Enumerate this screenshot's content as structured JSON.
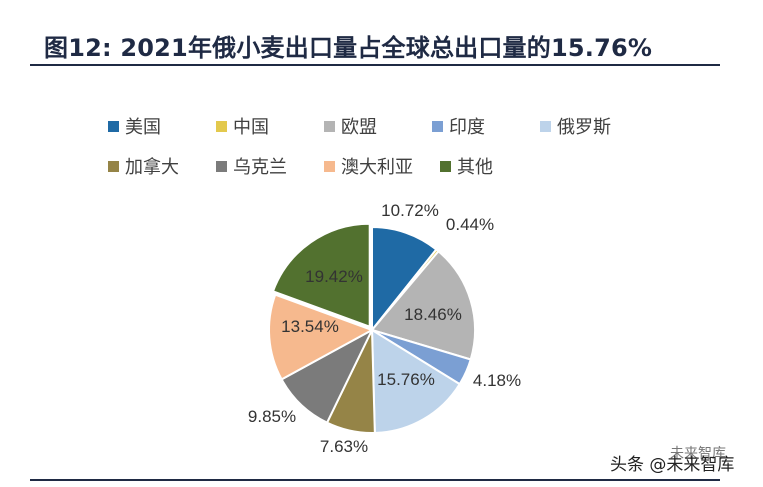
{
  "title": "图12:  2021年俄小麦出口量占全球总出口量的15.76%",
  "chart_data": {
    "type": "pie",
    "title": "",
    "unit": "%",
    "slices": [
      {
        "name": "美国",
        "value": 10.72,
        "label": "10.72%",
        "color": "#1f6aa5"
      },
      {
        "name": "中国",
        "value": 0.44,
        "label": "0.44%",
        "color": "#e3c94d"
      },
      {
        "name": "欧盟",
        "value": 18.46,
        "label": "18.46%",
        "color": "#b4b4b4"
      },
      {
        "name": "印度",
        "value": 4.18,
        "label": "4.18%",
        "color": "#7b9fd3"
      },
      {
        "name": "俄罗斯",
        "value": 15.76,
        "label": "15.76%",
        "color": "#bdd3ea"
      },
      {
        "name": "加拿大",
        "value": 7.63,
        "label": "7.63%",
        "color": "#958447"
      },
      {
        "name": "乌克兰",
        "value": 9.85,
        "label": "9.85%",
        "color": "#7b7b7b"
      },
      {
        "name": "澳大利亚",
        "value": 13.54,
        "label": "13.54%",
        "color": "#f6b98e"
      },
      {
        "name": "其他",
        "value": 19.42,
        "label": "19.42%",
        "color": "#52712f"
      }
    ],
    "legend_position": "top"
  },
  "watermark": {
    "main": "头条 @未来智库",
    "small": "未来智库"
  }
}
